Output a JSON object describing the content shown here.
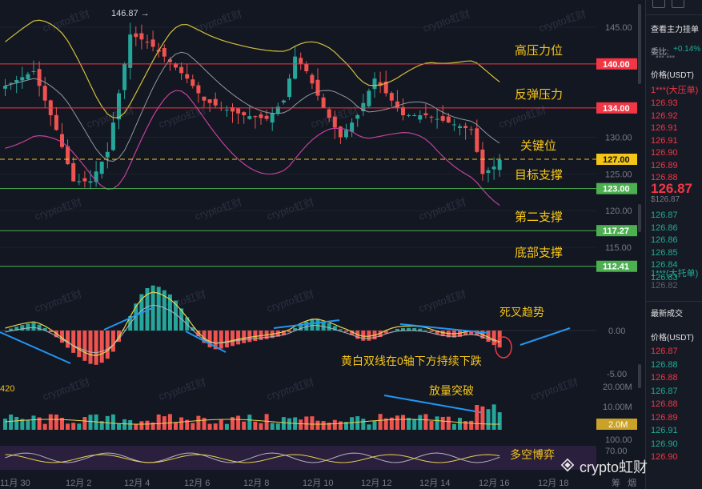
{
  "chart_data": {
    "type": "candlestick",
    "symbol_note": "",
    "y_axis": {
      "ticks": [
        145.0,
        130.0,
        125.0,
        120.0,
        115.0
      ],
      "ylim": [
        108,
        150
      ]
    },
    "x_axis": {
      "ticks": [
        "11月 30",
        "12月 2",
        "12月 4",
        "12月 6",
        "12月 8",
        "12月 10",
        "12月 12",
        "12月 14",
        "12月 16",
        "12月 18"
      ]
    },
    "high_marker": "146.87",
    "levels": [
      {
        "price": "140.00",
        "label": "高压力位",
        "color": "#f23645"
      },
      {
        "price": "134.00",
        "label": "反弹压力",
        "color": "#f23645"
      },
      {
        "price": "127.00",
        "label": "关键位",
        "color": "#f5c518"
      },
      {
        "price": "123.00",
        "label": "目标支撑",
        "color": "#4caf50"
      },
      {
        "price": "117.27",
        "label": "第二支撑",
        "color": "#4caf50"
      },
      {
        "price": "112.41",
        "label": "底部支撑",
        "color": "#4caf50"
      }
    ],
    "macd_axis": {
      "ticks": [
        "0.00",
        "-5.00"
      ]
    },
    "macd_annotations": [
      "死叉趋势",
      "黄白双线在0轴下方持续下跌"
    ],
    "volume_axis": {
      "ticks": [
        "20.00M",
        "10.00M"
      ],
      "current": "2.0M"
    },
    "volume_annotation": "放量突破",
    "volume_left_label": "420",
    "oscillator_axis": {
      "ticks": [
        "100.00",
        "70.00"
      ]
    },
    "oscillator_annotation": "多空博弈",
    "watermark": "crypto虹财"
  },
  "order_panel": {
    "title": "查看主力挂单",
    "ratio_label": "委比:",
    "ratio_value": "+0.14%",
    "price_header": "价格(USDT)",
    "big_ask_label": "1***(大压单)",
    "asks": [
      "126.93",
      "126.92",
      "126.91",
      "126.91",
      "126.90",
      "126.89",
      "126.88"
    ],
    "last_price": "126.87",
    "last_price_sub": "$126.87",
    "bids": [
      "126.87",
      "126.86",
      "126.86",
      "126.85",
      "126.84",
      "126.83"
    ],
    "big_bid_label": "1***(大托单)",
    "bid_tail": "126.82",
    "trades_title": "最新成交",
    "trades_header": "价格(USDT)",
    "trades": [
      {
        "price": "126.87",
        "side": "ask"
      },
      {
        "price": "126.88",
        "side": "bid"
      },
      {
        "price": "126.88",
        "side": "ask"
      },
      {
        "price": "126.87",
        "side": "bid"
      },
      {
        "price": "126.88",
        "side": "ask"
      },
      {
        "price": "126.89",
        "side": "ask"
      },
      {
        "price": "126.91",
        "side": "bid"
      },
      {
        "price": "126.90",
        "side": "bid"
      },
      {
        "price": "126.90",
        "side": "ask"
      }
    ]
  },
  "bottom_labels": [
    "筹",
    "烟"
  ],
  "logo_text": "crypto虹财",
  "colors": {
    "up": "#26a69a",
    "down": "#ef5350",
    "accent_yellow": "#f5c518",
    "support_green": "#4caf50",
    "resistance_red": "#f23645"
  }
}
